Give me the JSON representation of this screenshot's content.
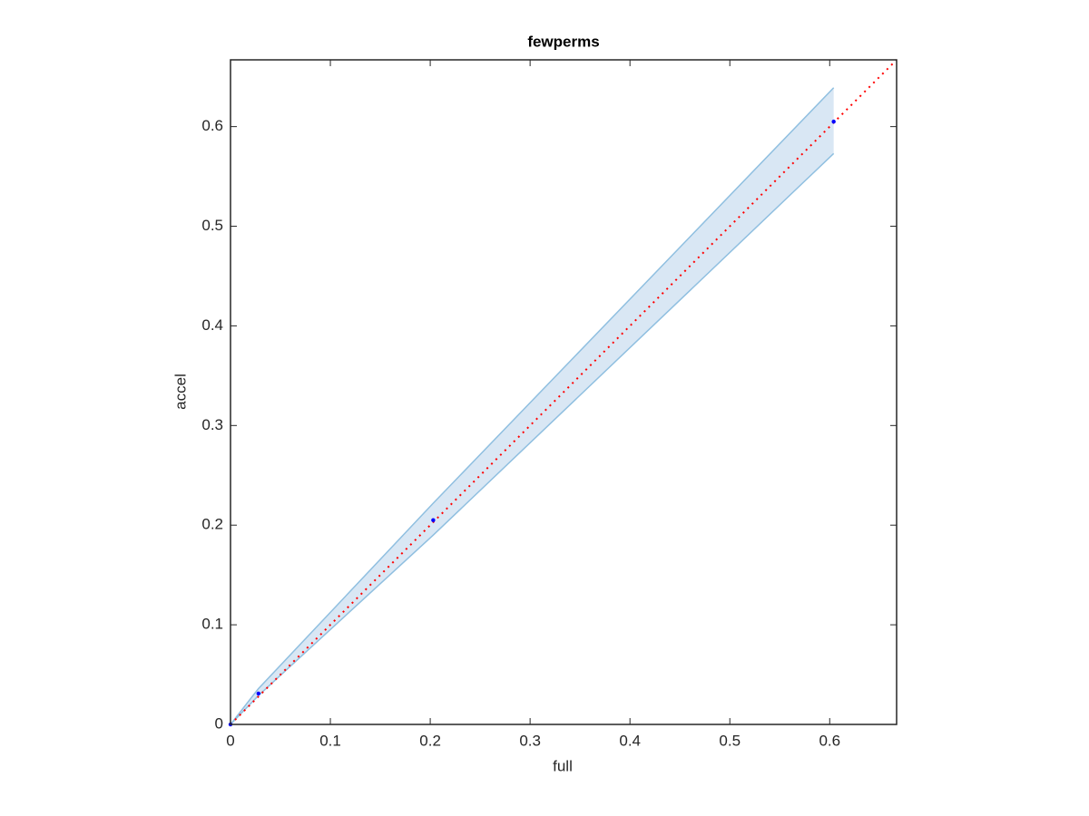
{
  "chart_data": {
    "type": "scatter",
    "title": "fewperms",
    "x_label": "full",
    "y_label": "accel",
    "xlim": [
      0,
      0.667
    ],
    "ylim": [
      0,
      0.667
    ],
    "xticks": [
      0,
      0.1,
      0.2,
      0.3,
      0.4,
      0.5,
      0.6
    ],
    "yticks": [
      0,
      0.1,
      0.2,
      0.3,
      0.4,
      0.5,
      0.6
    ],
    "band": {
      "x": [
        0,
        0.028,
        0.203,
        0.604
      ],
      "lower": [
        0,
        0.029,
        0.19,
        0.573
      ],
      "upper": [
        0,
        0.036,
        0.222,
        0.639
      ],
      "color": "#d9e7f4",
      "edge_color": "#8fbfe0"
    },
    "reference": {
      "x": [
        0,
        0.667
      ],
      "values": [
        0,
        0.667
      ],
      "color": "#ff0000"
    },
    "series": [
      {
        "color": "#0000ff",
        "x": [
          0,
          0.028,
          0.203,
          0.604
        ],
        "values": [
          0,
          0.031,
          0.205,
          0.605
        ]
      }
    ]
  }
}
